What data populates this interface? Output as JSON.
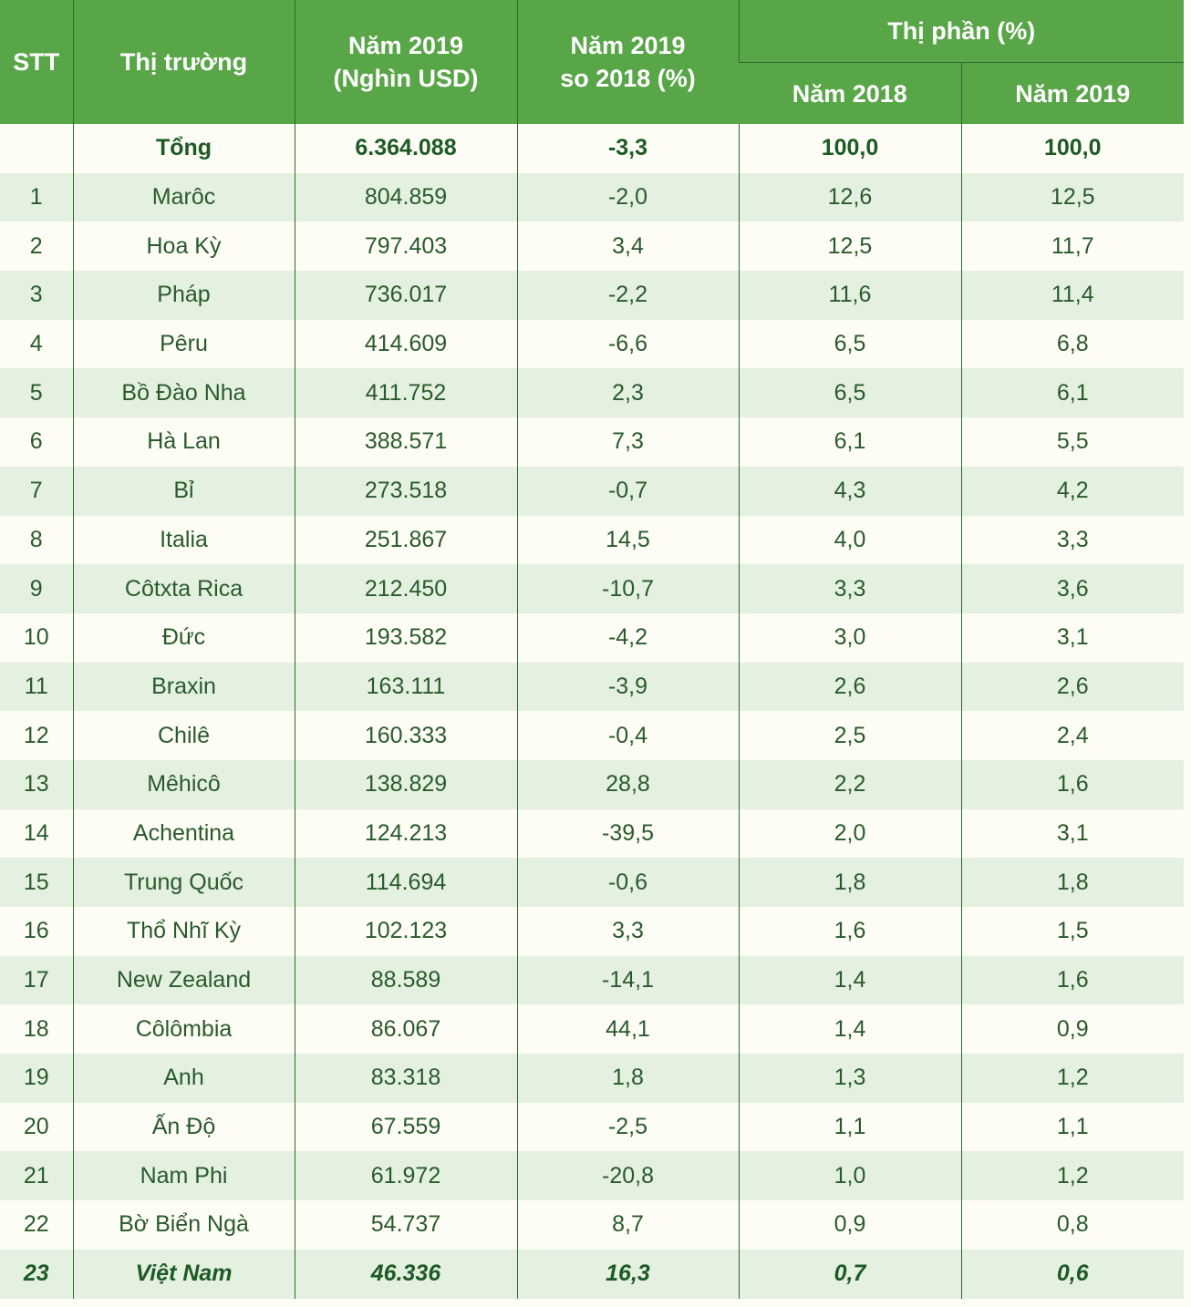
{
  "headers": {
    "stt": "STT",
    "market": "Thị trường",
    "value_2019_line1": "Năm 2019",
    "value_2019_line2": "(Nghìn USD)",
    "change_line1": "Năm 2019",
    "change_line2": "so 2018 (%)",
    "share": "Thị phần (%)",
    "share_2018": "Năm 2018",
    "share_2019": "Năm 2019"
  },
  "total": {
    "stt": "",
    "market": "Tổng",
    "value": "6.364.088",
    "change": "-3,3",
    "share2018": "100,0",
    "share2019": "100,0"
  },
  "rows": [
    {
      "stt": "1",
      "market": "Marôc",
      "value": "804.859",
      "change": "-2,0",
      "share2018": "12,6",
      "share2019": "12,5"
    },
    {
      "stt": "2",
      "market": "Hoa Kỳ",
      "value": "797.403",
      "change": "3,4",
      "share2018": "12,5",
      "share2019": "11,7"
    },
    {
      "stt": "3",
      "market": "Pháp",
      "value": "736.017",
      "change": "-2,2",
      "share2018": "11,6",
      "share2019": "11,4"
    },
    {
      "stt": "4",
      "market": "Pêru",
      "value": "414.609",
      "change": "-6,6",
      "share2018": "6,5",
      "share2019": "6,8"
    },
    {
      "stt": "5",
      "market": "Bồ Đào Nha",
      "value": "411.752",
      "change": "2,3",
      "share2018": "6,5",
      "share2019": "6,1"
    },
    {
      "stt": "6",
      "market": "Hà Lan",
      "value": "388.571",
      "change": "7,3",
      "share2018": "6,1",
      "share2019": "5,5"
    },
    {
      "stt": "7",
      "market": "Bỉ",
      "value": "273.518",
      "change": "-0,7",
      "share2018": "4,3",
      "share2019": "4,2"
    },
    {
      "stt": "8",
      "market": "Italia",
      "value": "251.867",
      "change": "14,5",
      "share2018": "4,0",
      "share2019": "3,3"
    },
    {
      "stt": "9",
      "market": "Côtxta Rica",
      "value": "212.450",
      "change": "-10,7",
      "share2018": "3,3",
      "share2019": "3,6"
    },
    {
      "stt": "10",
      "market": "Đức",
      "value": "193.582",
      "change": "-4,2",
      "share2018": "3,0",
      "share2019": "3,1"
    },
    {
      "stt": "11",
      "market": "Braxin",
      "value": "163.111",
      "change": "-3,9",
      "share2018": "2,6",
      "share2019": "2,6"
    },
    {
      "stt": "12",
      "market": "Chilê",
      "value": "160.333",
      "change": "-0,4",
      "share2018": "2,5",
      "share2019": "2,4"
    },
    {
      "stt": "13",
      "market": "Mêhicô",
      "value": "138.829",
      "change": "28,8",
      "share2018": "2,2",
      "share2019": "1,6"
    },
    {
      "stt": "14",
      "market": "Achentina",
      "value": "124.213",
      "change": "-39,5",
      "share2018": "2,0",
      "share2019": "3,1"
    },
    {
      "stt": "15",
      "market": "Trung Quốc",
      "value": "114.694",
      "change": "-0,6",
      "share2018": "1,8",
      "share2019": "1,8"
    },
    {
      "stt": "16",
      "market": "Thổ Nhĩ Kỳ",
      "value": "102.123",
      "change": "3,3",
      "share2018": "1,6",
      "share2019": "1,5"
    },
    {
      "stt": "17",
      "market": "New Zealand",
      "value": "88.589",
      "change": "-14,1",
      "share2018": "1,4",
      "share2019": "1,6"
    },
    {
      "stt": "18",
      "market": "Côlômbia",
      "value": "86.067",
      "change": "44,1",
      "share2018": "1,4",
      "share2019": "0,9"
    },
    {
      "stt": "19",
      "market": "Anh",
      "value": "83.318",
      "change": "1,8",
      "share2018": "1,3",
      "share2019": "1,2"
    },
    {
      "stt": "20",
      "market": "Ấn Độ",
      "value": "67.559",
      "change": "-2,5",
      "share2018": "1,1",
      "share2019": "1,1"
    },
    {
      "stt": "21",
      "market": "Nam Phi",
      "value": "61.972",
      "change": "-20,8",
      "share2018": "1,0",
      "share2019": "1,2"
    },
    {
      "stt": "22",
      "market": "Bờ Biển Ngà",
      "value": "54.737",
      "change": "8,7",
      "share2018": "0,9",
      "share2019": "0,8"
    }
  ],
  "highlight": {
    "stt": "23",
    "market": "Việt Nam",
    "value": "46.336",
    "change": "16,3",
    "share2018": "0,7",
    "share2019": "0,6"
  }
}
